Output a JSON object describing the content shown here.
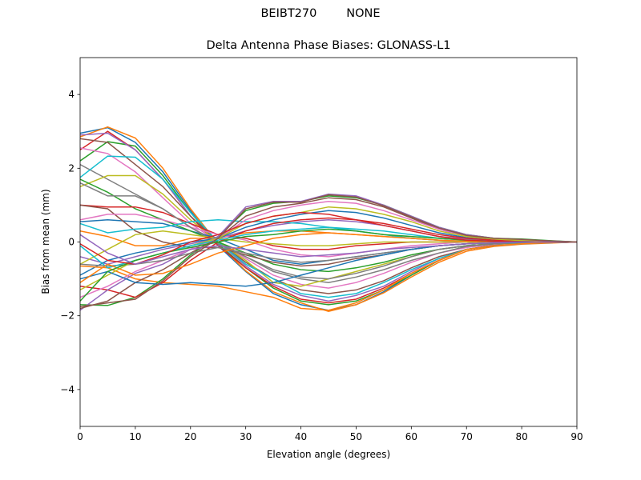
{
  "chart_data": {
    "type": "line",
    "suptitle": "BEIBT270        NONE",
    "title": "Delta Antenna Phase Biases: GLONASS-L1",
    "xlabel": "Elevation angle (degrees)",
    "ylabel": "Bias from mean (mm)",
    "xlim": [
      0,
      90
    ],
    "ylim": [
      -5,
      5
    ],
    "xticks": [
      0,
      10,
      20,
      30,
      40,
      50,
      60,
      70,
      80,
      90
    ],
    "yticks": [
      -4,
      -2,
      0,
      2,
      4
    ],
    "ytick_labels": [
      "−4",
      "−2",
      "0",
      "2",
      "4"
    ],
    "grid": false,
    "x": [
      0,
      5,
      10,
      15,
      20,
      25,
      30,
      35,
      40,
      45,
      50,
      55,
      60,
      65,
      70,
      75,
      80,
      85,
      90
    ],
    "colors": [
      "#1f77b4",
      "#ff7f0e",
      "#2ca02c",
      "#d62728",
      "#9467bd",
      "#8c564b",
      "#e377c2",
      "#7f7f7f",
      "#bcbd22",
      "#17becf"
    ],
    "series": [
      {
        "values": [
          2.95,
          3.1,
          2.7,
          1.9,
          0.85,
          -0.1,
          -0.8,
          -1.4,
          -1.7,
          -1.85,
          -1.7,
          -1.35,
          -0.9,
          -0.5,
          -0.2,
          -0.1,
          -0.05,
          -0.02,
          0
        ]
      },
      {
        "values": [
          2.85,
          3.12,
          2.82,
          2.0,
          0.9,
          -0.05,
          -0.78,
          -1.35,
          -1.65,
          -1.88,
          -1.7,
          -1.38,
          -0.95,
          -0.55,
          -0.25,
          -0.12,
          -0.06,
          -0.03,
          0
        ]
      },
      {
        "values": [
          2.2,
          2.72,
          2.6,
          1.8,
          0.8,
          -0.05,
          -0.7,
          -1.25,
          -1.6,
          -1.7,
          -1.6,
          -1.3,
          -0.9,
          -0.5,
          -0.2,
          -0.1,
          -0.05,
          -0.02,
          0
        ]
      },
      {
        "values": [
          2.5,
          3.0,
          2.5,
          1.7,
          0.7,
          -0.1,
          -0.7,
          -1.2,
          -1.55,
          -1.65,
          -1.55,
          -1.25,
          -0.85,
          -0.5,
          -0.2,
          -0.1,
          -0.05,
          -0.02,
          0
        ]
      },
      {
        "values": [
          2.9,
          2.95,
          2.5,
          1.7,
          0.7,
          0,
          -0.65,
          -1.15,
          -1.45,
          -1.6,
          -1.45,
          -1.2,
          -0.8,
          -0.45,
          -0.2,
          -0.1,
          -0.05,
          -0.02,
          0
        ]
      },
      {
        "values": [
          2.8,
          2.7,
          2.1,
          1.5,
          0.7,
          0,
          -0.55,
          -1.0,
          -1.3,
          -1.4,
          -1.3,
          -1.05,
          -0.7,
          -0.4,
          -0.2,
          -0.08,
          -0.04,
          -0.02,
          0
        ]
      },
      {
        "values": [
          2.55,
          2.4,
          1.9,
          1.2,
          0.5,
          0,
          -0.45,
          -0.9,
          -1.15,
          -1.25,
          -1.1,
          -0.85,
          -0.55,
          -0.3,
          -0.15,
          -0.06,
          -0.03,
          -0.01,
          0
        ]
      },
      {
        "values": [
          2.1,
          1.7,
          1.3,
          0.9,
          0.4,
          0,
          -0.4,
          -0.8,
          -1.0,
          -1.1,
          -0.95,
          -0.75,
          -0.5,
          -0.3,
          -0.12,
          -0.05,
          -0.02,
          -0.01,
          0
        ]
      },
      {
        "values": [
          1.5,
          1.8,
          1.8,
          1.3,
          0.6,
          0,
          -0.5,
          -1.1,
          -1.2,
          -1.0,
          -0.8,
          -0.6,
          -0.4,
          -0.2,
          -0.1,
          -0.05,
          -0.03,
          -0.01,
          0
        ]
      },
      {
        "values": [
          1.75,
          2.33,
          2.3,
          1.7,
          0.8,
          0,
          -0.6,
          -1.0,
          -1.4,
          -1.5,
          -1.4,
          -1.1,
          -0.75,
          -0.45,
          -0.2,
          -0.1,
          -0.05,
          -0.02,
          0
        ]
      },
      {
        "values": [
          0.55,
          0.6,
          0.55,
          0.5,
          0.3,
          0.1,
          -0.2,
          -0.5,
          -0.6,
          -0.5,
          -0.4,
          -0.3,
          -0.2,
          -0.1,
          -0.05,
          -0.02,
          0,
          0,
          0
        ]
      },
      {
        "values": [
          0.3,
          0.15,
          -0.1,
          -0.1,
          0.1,
          0.1,
          0.25,
          0.3,
          0.3,
          0.25,
          0.2,
          0.15,
          0.1,
          0.05,
          0.02,
          0.01,
          0,
          0,
          0
        ]
      },
      {
        "values": [
          1.7,
          1.35,
          0.9,
          0.6,
          0.3,
          0,
          -0.3,
          -0.6,
          -0.75,
          -0.8,
          -0.7,
          -0.55,
          -0.35,
          -0.2,
          -0.1,
          -0.05,
          -0.02,
          -0.01,
          0
        ]
      },
      {
        "values": [
          1.0,
          0.95,
          0.95,
          0.8,
          0.5,
          0.2,
          0.1,
          -0.1,
          -0.2,
          -0.2,
          -0.1,
          -0.05,
          0,
          0,
          0,
          0,
          0,
          0,
          0
        ]
      },
      {
        "values": [
          -0.4,
          -0.6,
          -0.4,
          -0.2,
          -0.05,
          0.1,
          0.3,
          0.45,
          0.55,
          0.6,
          0.55,
          0.45,
          0.3,
          0.15,
          0.08,
          0.04,
          0.02,
          0.01,
          0
        ]
      },
      {
        "values": [
          1.0,
          0.9,
          0.3,
          0.0,
          -0.15,
          -0.15,
          -0.35,
          -0.55,
          -0.65,
          -0.6,
          -0.45,
          -0.35,
          -0.2,
          -0.1,
          -0.05,
          -0.02,
          -0.01,
          0,
          0
        ]
      },
      {
        "values": [
          0.6,
          0.75,
          0.75,
          0.6,
          0.4,
          0.2,
          0.05,
          -0.2,
          -0.35,
          -0.4,
          -0.3,
          -0.2,
          -0.1,
          -0.05,
          0,
          0,
          0,
          0,
          0
        ]
      },
      {
        "values": [
          1.6,
          1.25,
          1.25,
          0.9,
          0.4,
          -0.05,
          -0.4,
          -0.75,
          -0.95,
          -1.0,
          -0.85,
          -0.65,
          -0.4,
          -0.2,
          -0.1,
          -0.05,
          -0.02,
          -0.01,
          0
        ]
      },
      {
        "values": [
          -0.6,
          -0.2,
          0.2,
          0.3,
          0.2,
          0.1,
          0,
          -0.05,
          -0.1,
          -0.1,
          -0.05,
          0,
          0,
          0,
          0,
          0,
          0,
          0,
          0
        ]
      },
      {
        "values": [
          0.5,
          0.25,
          0.35,
          0.4,
          0.55,
          0.6,
          0.55,
          0.55,
          0.5,
          0.4,
          0.3,
          0.2,
          0.1,
          0.05,
          0.02,
          0.01,
          0,
          0,
          0
        ]
      },
      {
        "values": [
          -0.9,
          -0.5,
          -0.3,
          -0.15,
          0,
          0.1,
          0.4,
          0.6,
          0.75,
          0.85,
          0.8,
          0.65,
          0.45,
          0.25,
          0.12,
          0.06,
          0.03,
          0.01,
          0
        ]
      },
      {
        "values": [
          -0.65,
          -0.7,
          -1.0,
          -1.1,
          -1.15,
          -1.2,
          -1.35,
          -1.5,
          -1.8,
          -1.85,
          -1.65,
          -1.3,
          -0.85,
          -0.5,
          -0.2,
          -0.1,
          -0.05,
          -0.02,
          0
        ]
      },
      {
        "values": [
          -1.7,
          -1.72,
          -1.5,
          -1.0,
          -0.35,
          0.15,
          0.85,
          1.05,
          1.1,
          1.25,
          1.2,
          1.0,
          0.7,
          0.4,
          0.2,
          0.1,
          0.08,
          0.04,
          0
        ]
      },
      {
        "values": [
          -1.2,
          -1.3,
          -1.5,
          -1.1,
          -0.5,
          0,
          0.3,
          0.5,
          0.6,
          0.65,
          0.6,
          0.5,
          0.35,
          0.2,
          0.1,
          0.05,
          0.02,
          0.01,
          0
        ]
      },
      {
        "values": [
          -1.85,
          -1.3,
          -0.85,
          -0.6,
          -0.2,
          0.15,
          0.95,
          1.1,
          1.1,
          1.3,
          1.25,
          1.0,
          0.7,
          0.4,
          0.2,
          0.1,
          0.06,
          0.03,
          0
        ]
      },
      {
        "values": [
          -1.8,
          -1.6,
          -1.1,
          -0.75,
          -0.3,
          0.1,
          0.7,
          0.95,
          1.05,
          1.2,
          1.15,
          0.95,
          0.65,
          0.35,
          0.15,
          0.08,
          0.05,
          0.02,
          0
        ]
      },
      {
        "values": [
          -1.5,
          -1.2,
          -0.8,
          -0.5,
          -0.2,
          0.1,
          0.6,
          0.85,
          1.0,
          1.1,
          1.05,
          0.85,
          0.6,
          0.35,
          0.15,
          0.08,
          0.05,
          0.02,
          0
        ]
      },
      {
        "values": [
          -0.6,
          -0.65,
          -0.6,
          -0.5,
          -0.3,
          -0.15,
          -0.3,
          -0.45,
          -0.55,
          -0.5,
          -0.4,
          -0.3,
          -0.2,
          -0.1,
          -0.05,
          -0.02,
          0,
          0,
          0
        ]
      },
      {
        "values": [
          -1.3,
          -0.9,
          -0.5,
          -0.3,
          -0.1,
          0.1,
          0.5,
          0.7,
          0.8,
          0.95,
          0.9,
          0.75,
          0.55,
          0.3,
          0.15,
          0.08,
          0.04,
          0.02,
          0
        ]
      },
      {
        "values": [
          -0.1,
          -0.7,
          -0.5,
          -0.3,
          -0.1,
          0.05,
          0.2,
          0.3,
          0.35,
          0.4,
          0.35,
          0.3,
          0.2,
          0.1,
          0.05,
          0.02,
          0.01,
          0,
          0
        ]
      },
      {
        "values": [
          -1.0,
          -0.8,
          -1.1,
          -1.15,
          -1.1,
          -1.15,
          -1.2,
          -1.1,
          -0.9,
          -0.7,
          -0.5,
          -0.35,
          -0.2,
          -0.1,
          -0.05,
          -0.02,
          -0.01,
          0,
          0
        ]
      },
      {
        "values": [
          -1.1,
          -0.6,
          -0.9,
          -0.85,
          -0.6,
          -0.3,
          -0.1,
          0.1,
          0.2,
          0.25,
          0.2,
          0.15,
          0.1,
          0.05,
          0.02,
          0.01,
          0,
          0,
          0
        ]
      },
      {
        "values": [
          -1.6,
          -0.8,
          -0.5,
          -0.3,
          -0.15,
          0,
          0.15,
          0.2,
          0.3,
          0.35,
          0.3,
          0.2,
          0.15,
          0.1,
          0.05,
          0.02,
          0.01,
          0,
          0
        ]
      },
      {
        "values": [
          -0.05,
          -0.5,
          -0.6,
          -0.35,
          0.0,
          0.2,
          0.5,
          0.7,
          0.8,
          0.75,
          0.6,
          0.45,
          0.3,
          0.15,
          0.05,
          0.02,
          0.01,
          0,
          0
        ]
      },
      {
        "values": [
          0.2,
          -0.3,
          -0.6,
          -0.4,
          -0.2,
          -0.1,
          -0.2,
          -0.3,
          -0.4,
          -0.35,
          -0.3,
          -0.2,
          -0.15,
          -0.1,
          -0.05,
          -0.02,
          0,
          0,
          0
        ]
      },
      {
        "values": [
          -1.75,
          -1.65,
          -1.55,
          -1.05,
          -0.4,
          0.1,
          0.9,
          1.08,
          1.08,
          1.28,
          1.22,
          0.98,
          0.68,
          0.38,
          0.18,
          0.1,
          0.07,
          0.03,
          0
        ]
      }
    ]
  }
}
